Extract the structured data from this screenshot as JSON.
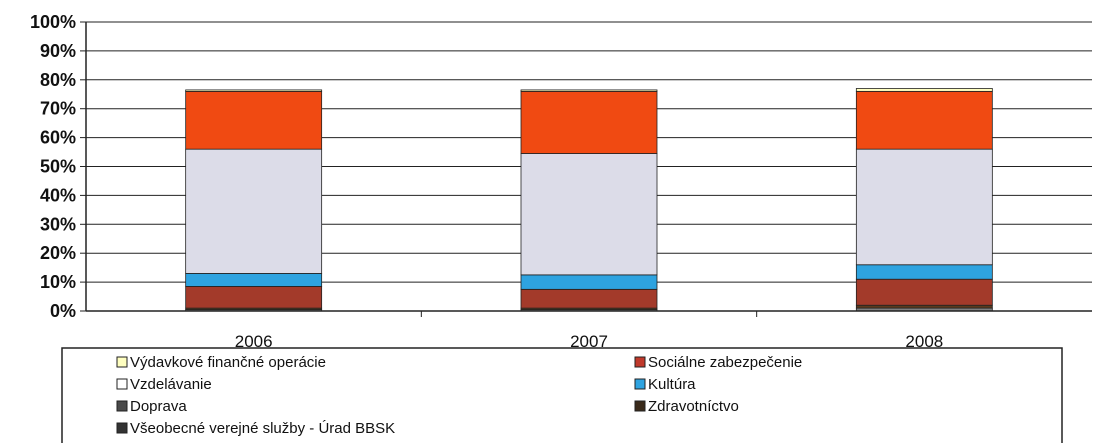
{
  "chart_data": {
    "type": "bar",
    "stacked": "percent",
    "categories": [
      "2006",
      "2007",
      "2008"
    ],
    "ylim": [
      0,
      100
    ],
    "y_ticks": [
      "0%",
      "10%",
      "20%",
      "30%",
      "40%",
      "50%",
      "60%",
      "70%",
      "80%",
      "90%",
      "100%"
    ],
    "grid": true,
    "legend_position": "bottom",
    "series": [
      {
        "name": "Všeobecné verejné služby - Úrad BBSK",
        "color": "#7f7f7f",
        "values": [
          0.5,
          0.5,
          1.0
        ]
      },
      {
        "name": "Zdravotníctvo",
        "color": "#5a3a1e",
        "values": [
          0.5,
          0.5,
          1.0
        ]
      },
      {
        "name": "Doprava",
        "color": "#a33a2a",
        "values": [
          7.5,
          6.5,
          9.0
        ]
      },
      {
        "name": "Kultúra",
        "color": "#2ea3e0",
        "values": [
          4.5,
          5.0,
          5.0
        ]
      },
      {
        "name": "Vzdelávanie",
        "color": "#dcdce8",
        "values": [
          43.0,
          42.0,
          40.0
        ]
      },
      {
        "name": "Sociálne zabezpečenie",
        "color": "#f04a12",
        "values": [
          20.0,
          21.5,
          20.0
        ]
      },
      {
        "name": "Výdavkové finančné operácie",
        "color": "#ffffc0",
        "values": [
          0.5,
          0.5,
          1.0
        ]
      }
    ],
    "legend_items": [
      {
        "label": "Výdavkové finančné operácie",
        "color": "#ffffc0"
      },
      {
        "label": "Sociálne zabezpečenie",
        "color": "#c0392b"
      },
      {
        "label": "Vzdelávanie",
        "color": "#ffffff"
      },
      {
        "label": "Kultúra",
        "color": "#2ea3e0"
      },
      {
        "label": "Doprava",
        "color": "#4a4a4a"
      },
      {
        "label": "Zdravotníctvo",
        "color": "#3a2a1a"
      },
      {
        "label": "Všeobecné verejné služby - Úrad BBSK",
        "color": "#333333"
      }
    ]
  }
}
